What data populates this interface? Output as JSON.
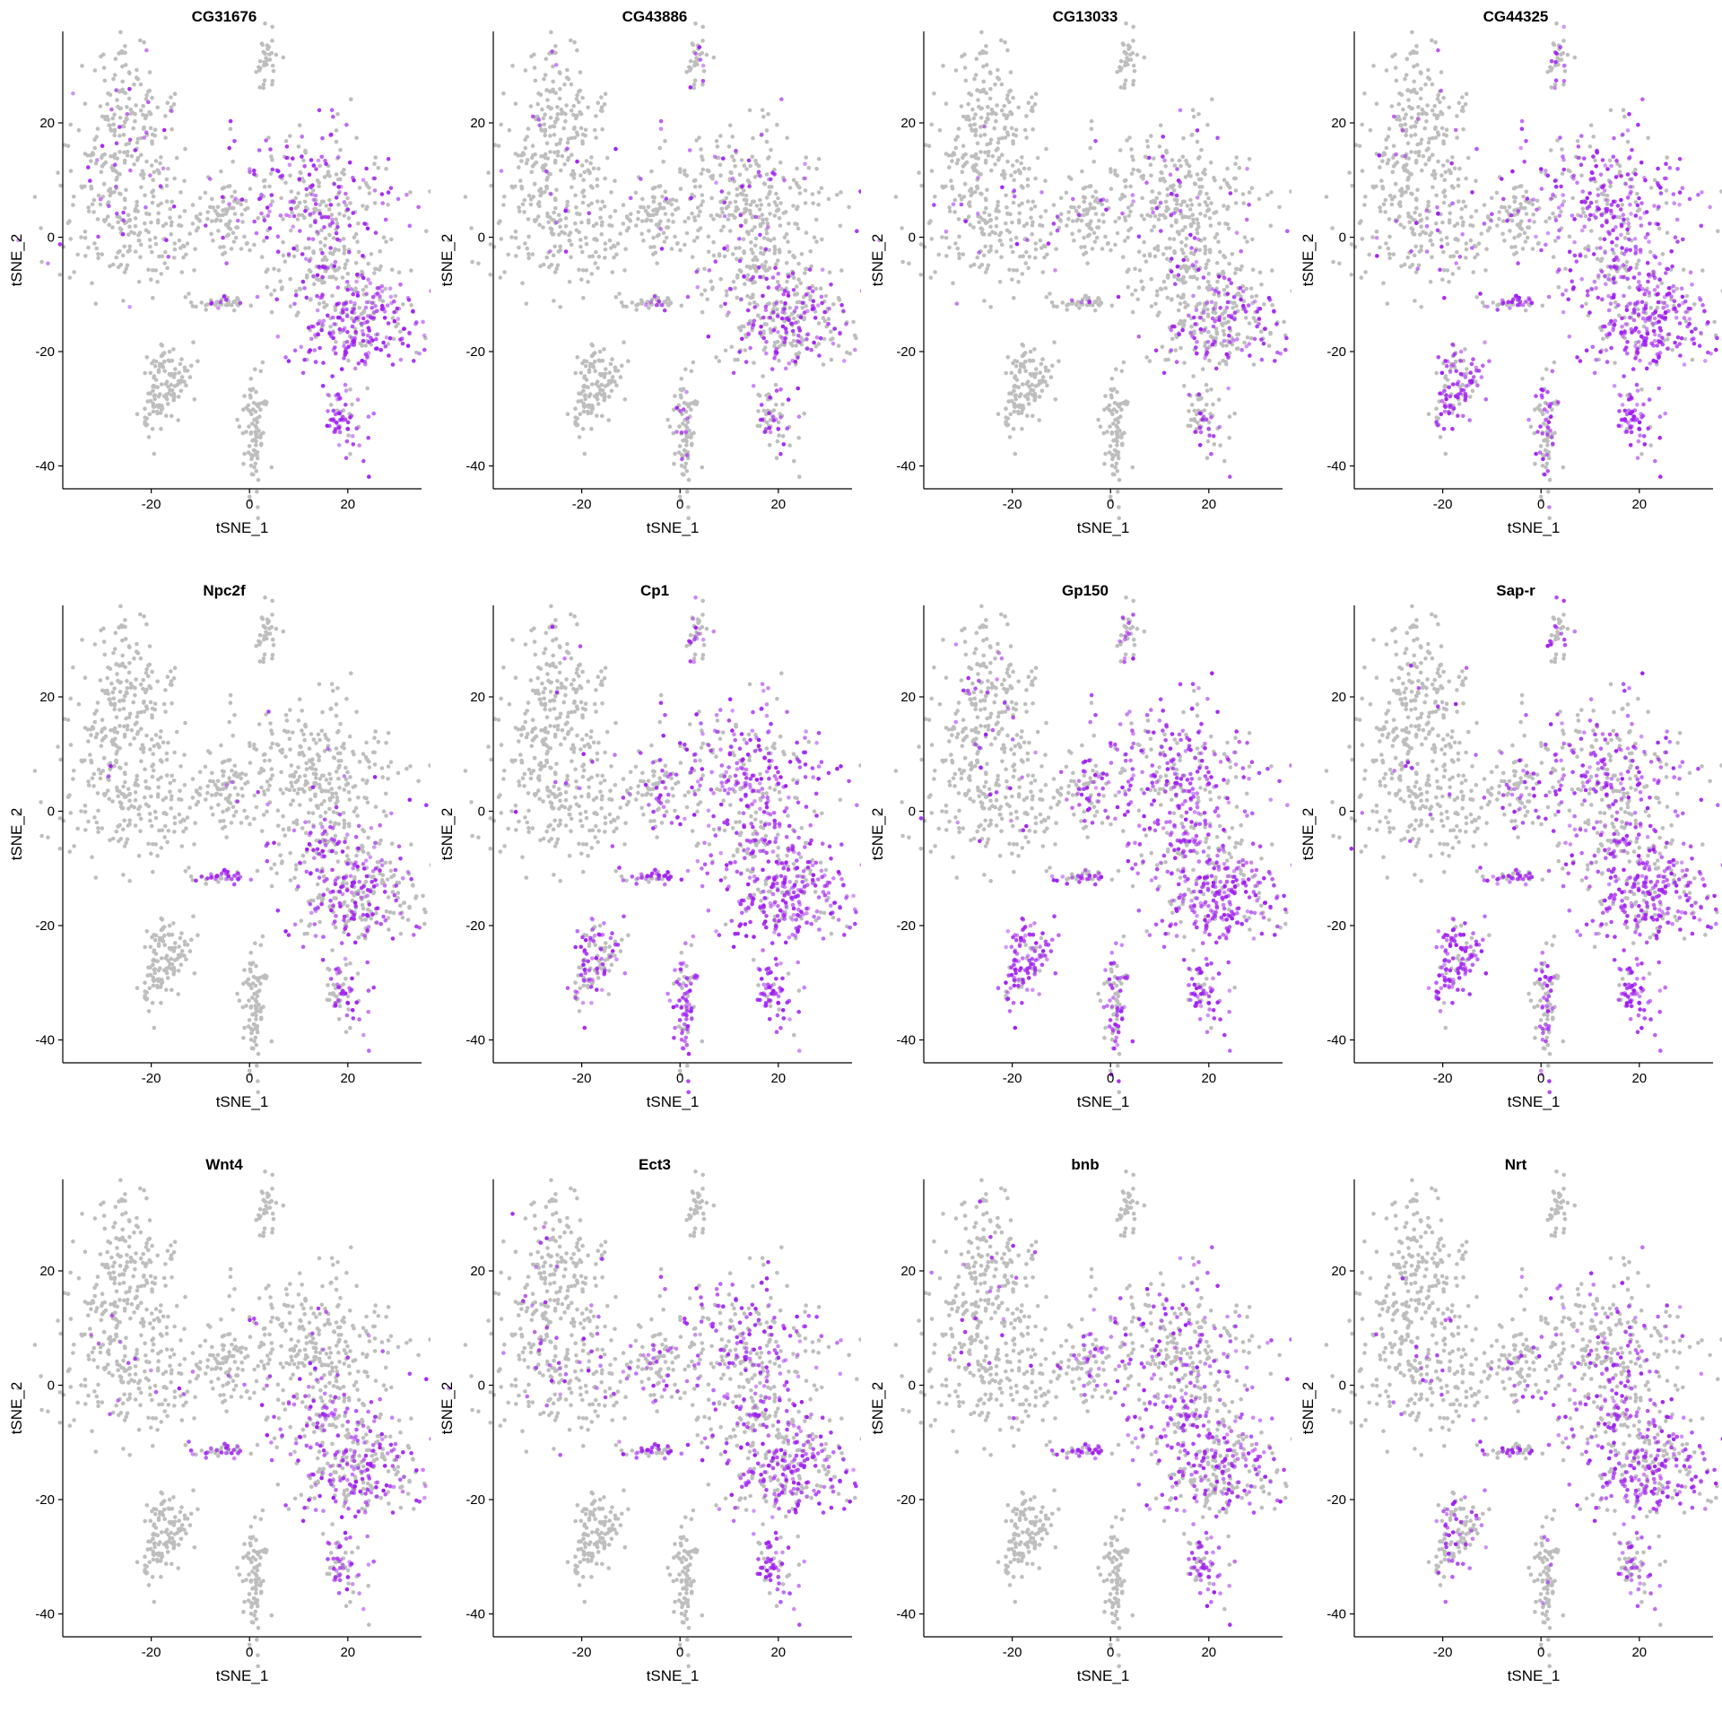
{
  "colors": {
    "low": "#BEBEBE",
    "high": "#A020F0",
    "axis": "#000000"
  },
  "chart_data": [
    {
      "type": "scatter",
      "title": "CG31676",
      "xlabel": "tSNE_1",
      "ylabel": "tSNE_2",
      "xlim": [
        -38,
        35
      ],
      "ylim": [
        -44,
        36
      ],
      "xticks": [
        -20,
        0,
        20
      ],
      "yticks": [
        -40,
        -20,
        0,
        20
      ],
      "grid": false,
      "legend": "none",
      "expression": {
        "A": 0.1,
        "B": 0.05,
        "C": 0.1,
        "D": 0.45,
        "E": 0.2,
        "F": 0.85,
        "G": 0.0,
        "H": 0.0,
        "I": 0.0,
        "J": 0.75
      }
    },
    {
      "type": "scatter",
      "title": "CG43886",
      "xlabel": "tSNE_1",
      "ylabel": "tSNE_2",
      "xlim": [
        -38,
        35
      ],
      "ylim": [
        -44,
        36
      ],
      "xticks": [
        -20,
        0,
        20
      ],
      "yticks": [
        -40,
        -20,
        0,
        20
      ],
      "grid": false,
      "legend": "none",
      "expression": {
        "A": 0.05,
        "B": 0.05,
        "C": 0.05,
        "D": 0.1,
        "E": 0.25,
        "F": 0.55,
        "G": 0.0,
        "H": 0.1,
        "I": 0.05,
        "J": 0.45
      }
    },
    {
      "type": "scatter",
      "title": "CG13033",
      "xlabel": "tSNE_1",
      "ylabel": "tSNE_2",
      "xlim": [
        -38,
        35
      ],
      "ylim": [
        -44,
        36
      ],
      "xticks": [
        -20,
        0,
        20
      ],
      "yticks": [
        -40,
        -20,
        0,
        20
      ],
      "grid": false,
      "legend": "none",
      "expression": {
        "A": 0.0,
        "B": 0.05,
        "C": 0.05,
        "D": 0.1,
        "E": 0.15,
        "F": 0.45,
        "G": 0.0,
        "H": 0.0,
        "I": 0.0,
        "J": 0.3
      }
    },
    {
      "type": "scatter",
      "title": "CG44325",
      "xlabel": "tSNE_1",
      "ylabel": "tSNE_2",
      "xlim": [
        -38,
        35
      ],
      "ylim": [
        -44,
        36
      ],
      "xticks": [
        -20,
        0,
        20
      ],
      "yticks": [
        -40,
        -20,
        0,
        20
      ],
      "grid": false,
      "legend": "none",
      "expression": {
        "A": 0.05,
        "B": 0.1,
        "C": 0.15,
        "D": 0.65,
        "E": 0.6,
        "F": 0.85,
        "G": 0.6,
        "H": 0.3,
        "I": 0.35,
        "J": 0.85
      }
    },
    {
      "type": "scatter",
      "title": "Npc2f",
      "xlabel": "tSNE_1",
      "ylabel": "tSNE_2",
      "xlim": [
        -38,
        35
      ],
      "ylim": [
        -44,
        36
      ],
      "xticks": [
        -20,
        0,
        20
      ],
      "yticks": [
        -40,
        -20,
        0,
        20
      ],
      "grid": false,
      "legend": "none",
      "expression": {
        "A": 0.0,
        "B": 0.02,
        "C": 0.05,
        "D": 0.05,
        "E": 0.55,
        "F": 0.4,
        "G": 0.0,
        "H": 0.0,
        "I": 0.0,
        "J": 0.5
      }
    },
    {
      "type": "scatter",
      "title": "Cp1",
      "xlabel": "tSNE_1",
      "ylabel": "tSNE_2",
      "xlim": [
        -38,
        35
      ],
      "ylim": [
        -44,
        36
      ],
      "xticks": [
        -20,
        0,
        20
      ],
      "yticks": [
        -40,
        -20,
        0,
        20
      ],
      "grid": false,
      "legend": "none",
      "expression": {
        "A": 0.05,
        "B": 0.05,
        "C": 0.35,
        "D": 0.65,
        "E": 0.55,
        "F": 0.8,
        "G": 0.5,
        "H": 0.7,
        "I": 0.4,
        "J": 0.8
      }
    },
    {
      "type": "scatter",
      "title": "Gp150",
      "xlabel": "tSNE_1",
      "ylabel": "tSNE_2",
      "xlim": [
        -38,
        35
      ],
      "ylim": [
        -44,
        36
      ],
      "xticks": [
        -20,
        0,
        20
      ],
      "yticks": [
        -40,
        -20,
        0,
        20
      ],
      "grid": false,
      "legend": "none",
      "expression": {
        "A": 0.05,
        "B": 0.05,
        "C": 0.4,
        "D": 0.6,
        "E": 0.55,
        "F": 0.8,
        "G": 0.85,
        "H": 0.55,
        "I": 0.4,
        "J": 0.85
      }
    },
    {
      "type": "scatter",
      "title": "Sap-r",
      "xlabel": "tSNE_1",
      "ylabel": "tSNE_2",
      "xlim": [
        -38,
        35
      ],
      "ylim": [
        -44,
        36
      ],
      "xticks": [
        -20,
        0,
        20
      ],
      "yticks": [
        -40,
        -20,
        0,
        20
      ],
      "grid": false,
      "legend": "none",
      "expression": {
        "A": 0.02,
        "B": 0.05,
        "C": 0.3,
        "D": 0.5,
        "E": 0.55,
        "F": 0.75,
        "G": 0.85,
        "H": 0.4,
        "I": 0.5,
        "J": 0.85
      }
    },
    {
      "type": "scatter",
      "title": "Wnt4",
      "xlabel": "tSNE_1",
      "ylabel": "tSNE_2",
      "xlim": [
        -38,
        35
      ],
      "ylim": [
        -44,
        36
      ],
      "xticks": [
        -20,
        0,
        20
      ],
      "yticks": [
        -40,
        -20,
        0,
        20
      ],
      "grid": false,
      "legend": "none",
      "expression": {
        "A": 0.0,
        "B": 0.03,
        "C": 0.05,
        "D": 0.1,
        "E": 0.5,
        "F": 0.5,
        "G": 0.0,
        "H": 0.0,
        "I": 0.0,
        "J": 0.6
      }
    },
    {
      "type": "scatter",
      "title": "Ect3",
      "xlabel": "tSNE_1",
      "ylabel": "tSNE_2",
      "xlim": [
        -38,
        35
      ],
      "ylim": [
        -44,
        36
      ],
      "xticks": [
        -20,
        0,
        20
      ],
      "yticks": [
        -40,
        -20,
        0,
        20
      ],
      "grid": false,
      "legend": "none",
      "expression": {
        "A": 0.05,
        "B": 0.1,
        "C": 0.25,
        "D": 0.4,
        "E": 0.5,
        "F": 0.65,
        "G": 0.0,
        "H": 0.0,
        "I": 0.0,
        "J": 0.6
      }
    },
    {
      "type": "scatter",
      "title": "bnb",
      "xlabel": "tSNE_1",
      "ylabel": "tSNE_2",
      "xlim": [
        -38,
        35
      ],
      "ylim": [
        -44,
        36
      ],
      "xticks": [
        -20,
        0,
        20
      ],
      "yticks": [
        -40,
        -20,
        0,
        20
      ],
      "grid": false,
      "legend": "none",
      "expression": {
        "A": 0.05,
        "B": 0.05,
        "C": 0.3,
        "D": 0.35,
        "E": 0.6,
        "F": 0.45,
        "G": 0.0,
        "H": 0.0,
        "I": 0.0,
        "J": 0.6
      }
    },
    {
      "type": "scatter",
      "title": "Nrt",
      "xlabel": "tSNE_1",
      "ylabel": "tSNE_2",
      "xlim": [
        -38,
        35
      ],
      "ylim": [
        -44,
        36
      ],
      "xticks": [
        -20,
        0,
        20
      ],
      "yticks": [
        -40,
        -20,
        0,
        20
      ],
      "grid": false,
      "legend": "none",
      "expression": {
        "A": 0.02,
        "B": 0.05,
        "C": 0.15,
        "D": 0.3,
        "E": 0.45,
        "F": 0.65,
        "G": 0.3,
        "H": 0.1,
        "I": 0.05,
        "J": 0.5
      }
    }
  ]
}
